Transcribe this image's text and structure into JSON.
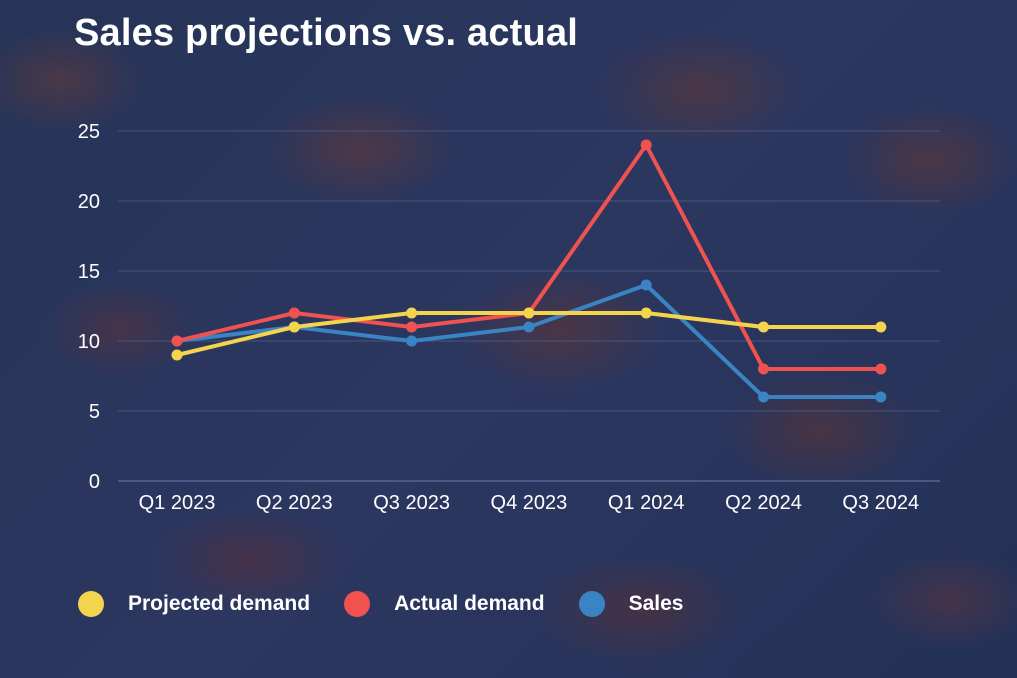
{
  "colors": {
    "projected": "#f4d44d",
    "actual": "#f0524f",
    "sales": "#3b84c4",
    "grid": "#5a6a94",
    "tick_text": "#ffffff"
  },
  "chart_data": {
    "type": "line",
    "title": "Sales projections vs. actual",
    "xlabel": "",
    "ylabel": "",
    "categories": [
      "Q1 2023",
      "Q2 2023",
      "Q3 2023",
      "Q4 2023",
      "Q1 2024",
      "Q2 2024",
      "Q3 2024"
    ],
    "y_ticks": [
      "0",
      "5",
      "10",
      "15",
      "20",
      "25"
    ],
    "ylim": [
      0,
      25
    ],
    "grid": true,
    "legend_position": "bottom-left",
    "series": [
      {
        "name": "Projected demand",
        "color_key": "projected",
        "values": [
          9,
          11,
          12,
          12,
          12,
          11,
          11
        ]
      },
      {
        "name": "Actual demand",
        "color_key": "actual",
        "values": [
          10,
          12,
          11,
          12,
          24,
          8,
          8
        ]
      },
      {
        "name": "Sales",
        "color_key": "sales",
        "values": [
          10,
          11,
          10,
          11,
          14,
          6,
          6
        ]
      }
    ]
  }
}
